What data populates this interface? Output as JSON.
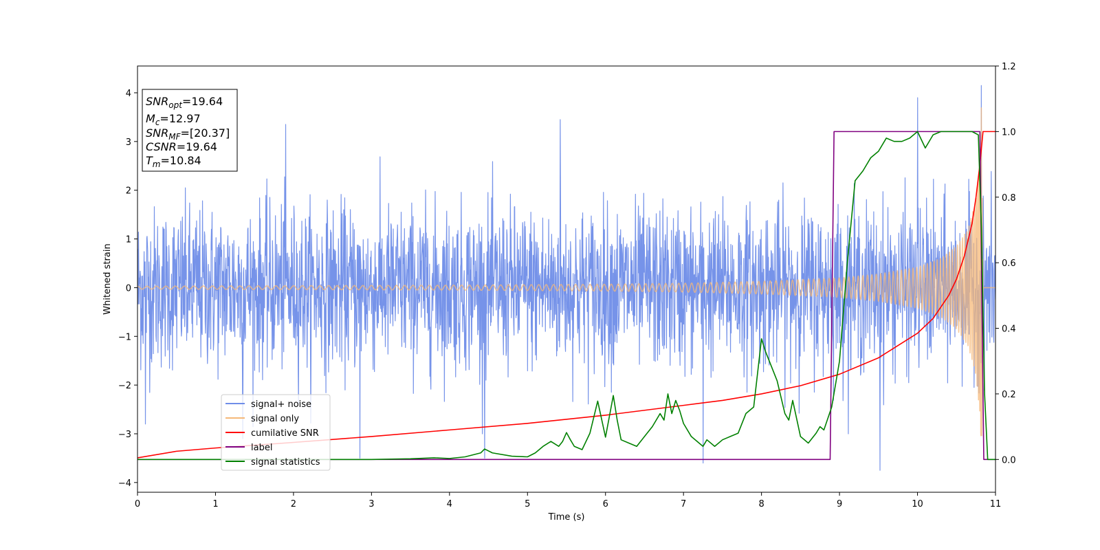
{
  "chart_data": {
    "type": "line",
    "title": "",
    "xlabel": "Time (s)",
    "ylabel": "Whitened strain",
    "xlim": [
      0,
      11
    ],
    "ylim": [
      -4.2,
      4.55
    ],
    "y2lim": [
      -0.1,
      1.2
    ],
    "xticks": [
      0,
      1,
      2,
      3,
      4,
      5,
      6,
      7,
      8,
      9,
      10,
      11
    ],
    "yticks": [
      -4,
      -3,
      -2,
      -1,
      0,
      1,
      2,
      3,
      4
    ],
    "y2ticks": [
      0.0,
      0.2,
      0.4,
      0.6,
      0.8,
      1.0,
      1.2
    ],
    "xtick_labels": [
      "0",
      "1",
      "2",
      "3",
      "4",
      "5",
      "6",
      "7",
      "8",
      "9",
      "10",
      "11"
    ],
    "ytick_labels": [
      "−4",
      "−3",
      "−2",
      "−1",
      "0",
      "1",
      "2",
      "3",
      "4"
    ],
    "y2tick_labels": [
      "0.0",
      "0.2",
      "0.4",
      "0.6",
      "0.8",
      "1.0",
      "1.2"
    ],
    "grid": false,
    "legend_placement": "lower-left",
    "series": [
      {
        "name": "signal+ noise",
        "axis": "left",
        "color": "#6f8de8",
        "style": "noise",
        "noise_sigma": 0.82,
        "peaks": [
          [
            1.9,
            3.35
          ],
          [
            2.85,
            -3.5
          ],
          [
            5.42,
            3.45
          ],
          [
            7.25,
            -3.6
          ],
          [
            9.52,
            -3.75
          ],
          [
            10.0,
            3.9
          ],
          [
            10.82,
            4.15
          ],
          [
            1.35,
            -3.1
          ],
          [
            0.1,
            -2.8
          ],
          [
            4.45,
            -3.5
          ]
        ]
      },
      {
        "name": "signal only",
        "axis": "left",
        "color": "#f5b878",
        "style": "chirp",
        "amplitude_points": [
          [
            0,
            0.03
          ],
          [
            2,
            0.04
          ],
          [
            4,
            0.05
          ],
          [
            6,
            0.07
          ],
          [
            7,
            0.09
          ],
          [
            8,
            0.13
          ],
          [
            9,
            0.2
          ],
          [
            9.5,
            0.28
          ],
          [
            10,
            0.42
          ],
          [
            10.3,
            0.6
          ],
          [
            10.5,
            0.85
          ],
          [
            10.65,
            1.2
          ],
          [
            10.75,
            1.8
          ],
          [
            10.8,
            2.6
          ],
          [
            10.82,
            3.8
          ],
          [
            10.84,
            0
          ]
        ]
      },
      {
        "name": "cumilative SNR",
        "axis": "right",
        "color": "#ff0000",
        "x": [
          0,
          0.5,
          1,
          2,
          3,
          4,
          5,
          6,
          7,
          7.5,
          8,
          8.5,
          9,
          9.5,
          10,
          10.2,
          10.4,
          10.5,
          10.6,
          10.7,
          10.75,
          10.8,
          10.84,
          11
        ],
        "y": [
          0.005,
          0.025,
          0.035,
          0.052,
          0.07,
          0.09,
          0.11,
          0.135,
          0.165,
          0.18,
          0.2,
          0.225,
          0.26,
          0.31,
          0.385,
          0.43,
          0.5,
          0.55,
          0.62,
          0.72,
          0.8,
          0.9,
          1.0,
          1.0
        ]
      },
      {
        "name": "label",
        "axis": "right",
        "color": "#800080",
        "x": [
          0,
          8.88,
          8.93,
          10.8,
          10.85,
          11
        ],
        "y": [
          0,
          0,
          1,
          1,
          0,
          0
        ]
      },
      {
        "name": "signal statistics",
        "axis": "right",
        "color": "#008000",
        "x": [
          0,
          0.5,
          1,
          2,
          3,
          3.5,
          3.8,
          4,
          4.2,
          4.4,
          4.45,
          4.55,
          4.8,
          5,
          5.1,
          5.2,
          5.3,
          5.4,
          5.45,
          5.5,
          5.55,
          5.6,
          5.7,
          5.8,
          5.9,
          6,
          6.1,
          6.15,
          6.2,
          6.3,
          6.4,
          6.5,
          6.6,
          6.7,
          6.75,
          6.8,
          6.85,
          6.9,
          6.95,
          7,
          7.1,
          7.2,
          7.25,
          7.3,
          7.4,
          7.5,
          7.6,
          7.7,
          7.8,
          7.9,
          8,
          8.05,
          8.1,
          8.2,
          8.3,
          8.35,
          8.4,
          8.5,
          8.6,
          8.7,
          8.75,
          8.8,
          8.9,
          9,
          9.1,
          9.2,
          9.3,
          9.4,
          9.5,
          9.6,
          9.7,
          9.8,
          9.9,
          10,
          10.1,
          10.2,
          10.3,
          10.5,
          10.7,
          10.78,
          10.82,
          10.86,
          10.9,
          11
        ],
        "y": [
          0.0,
          0.0,
          0.0,
          0.0,
          0.0,
          0.002,
          0.005,
          0.003,
          0.008,
          0.02,
          0.032,
          0.02,
          0.01,
          0.008,
          0.02,
          0.04,
          0.055,
          0.04,
          0.055,
          0.082,
          0.06,
          0.04,
          0.03,
          0.08,
          0.178,
          0.068,
          0.195,
          0.12,
          0.06,
          0.05,
          0.04,
          0.07,
          0.1,
          0.14,
          0.12,
          0.2,
          0.14,
          0.18,
          0.15,
          0.11,
          0.07,
          0.05,
          0.04,
          0.06,
          0.04,
          0.06,
          0.07,
          0.08,
          0.14,
          0.16,
          0.368,
          0.33,
          0.3,
          0.24,
          0.14,
          0.12,
          0.18,
          0.07,
          0.05,
          0.08,
          0.1,
          0.09,
          0.16,
          0.3,
          0.6,
          0.85,
          0.88,
          0.92,
          0.94,
          0.98,
          0.97,
          0.97,
          0.98,
          1.0,
          0.95,
          0.99,
          1.0,
          1.0,
          1.0,
          0.99,
          0.7,
          0.2,
          0.0,
          0.0
        ]
      }
    ],
    "annotation": {
      "lines": [
        {
          "sym": "SNR",
          "sub": "opt",
          "value": "=19.64"
        },
        {
          "sym": "M",
          "sub": "c",
          "value": "=12.97"
        },
        {
          "sym": "SNR",
          "sub": "MF",
          "value": "=[20.37]"
        },
        {
          "sym": "CSNR",
          "sub": "",
          "value": "=19.64"
        },
        {
          "sym": "T",
          "sub": "m",
          "value": "=10.84"
        }
      ]
    }
  }
}
